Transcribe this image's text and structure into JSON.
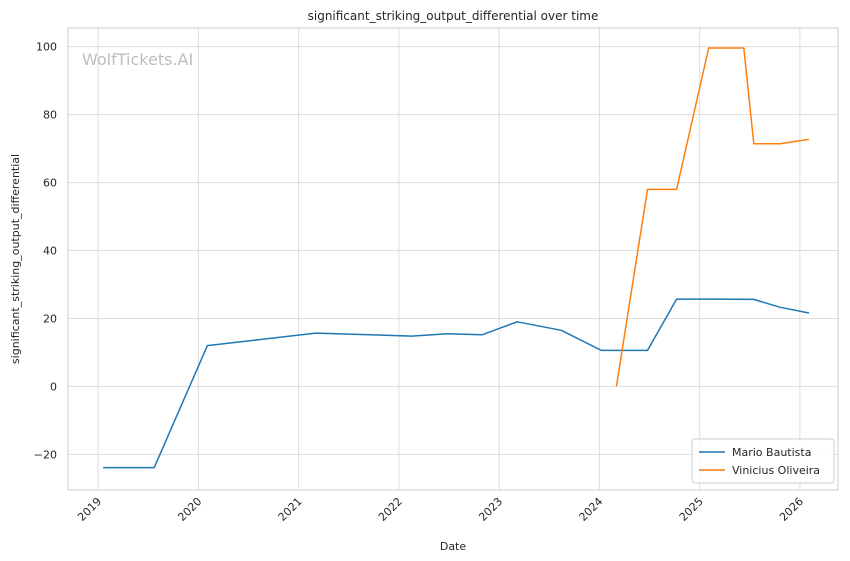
{
  "chart_data": {
    "type": "line",
    "title": "significant_striking_output_differential over time",
    "xlabel": "Date",
    "ylabel": "significant_striking_output_differential",
    "watermark": "WolfTickets.AI",
    "x_ticks": [
      "2019",
      "2020",
      "2021",
      "2022",
      "2023",
      "2024",
      "2025",
      "2026"
    ],
    "y_ticks": [
      -20,
      0,
      20,
      40,
      60,
      80,
      100
    ],
    "xlim": [
      2018.7,
      2026.38
    ],
    "ylim": [
      -30.5,
      105.5
    ],
    "grid": true,
    "legend_position": "bottom-right",
    "series": [
      {
        "name": "Mario Bautista",
        "color": "#1f77b4",
        "points": [
          [
            2019.05,
            -23.9
          ],
          [
            2019.56,
            -23.9
          ],
          [
            2020.09,
            12.0
          ],
          [
            2021.17,
            15.7
          ],
          [
            2022.13,
            14.8
          ],
          [
            2022.48,
            15.5
          ],
          [
            2022.83,
            15.2
          ],
          [
            2023.18,
            19.0
          ],
          [
            2023.62,
            16.5
          ],
          [
            2024.02,
            10.6
          ],
          [
            2024.48,
            10.6
          ],
          [
            2024.77,
            25.7
          ],
          [
            2025.12,
            25.7
          ],
          [
            2025.54,
            25.6
          ],
          [
            2025.8,
            23.3
          ],
          [
            2026.09,
            21.6
          ]
        ]
      },
      {
        "name": "Vinicius Oliveira",
        "color": "#ff7f0e",
        "points": [
          [
            2024.17,
            0.0
          ],
          [
            2024.48,
            58.0
          ],
          [
            2024.77,
            58.0
          ],
          [
            2025.09,
            99.6
          ],
          [
            2025.44,
            99.6
          ],
          [
            2025.54,
            71.4
          ],
          [
            2025.8,
            71.4
          ],
          [
            2026.09,
            72.7
          ]
        ]
      }
    ]
  }
}
